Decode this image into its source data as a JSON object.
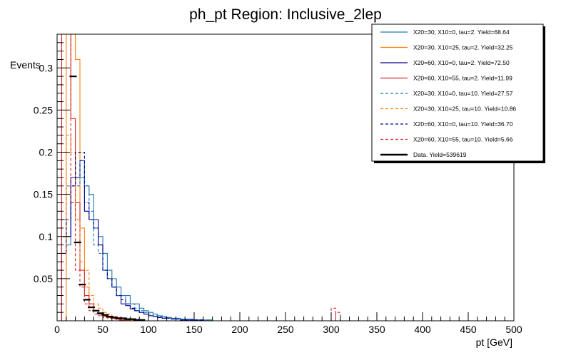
{
  "chart_data": {
    "type": "line",
    "title": "ph_pt Region: Inclusive_2lep",
    "xlabel": "pt [GeV]",
    "ylabel": "Events",
    "xlim": [
      0,
      500
    ],
    "ylim": [
      0,
      0.34
    ],
    "x_ticks": [
      0,
      50,
      100,
      150,
      200,
      250,
      300,
      350,
      400,
      450,
      500
    ],
    "y_ticks": [
      0.05,
      0.1,
      0.15,
      0.2,
      0.25,
      0.3
    ],
    "x_tick_labels": [
      "0",
      "50",
      "100",
      "150",
      "200",
      "250",
      "300",
      "350",
      "400",
      "450",
      "500"
    ],
    "y_tick_labels": [
      "0.05",
      "0.1",
      "0.15",
      "0.2",
      "0.25",
      "0.3"
    ],
    "grid": false,
    "legend_position": "top-right",
    "bin_edges": [
      0,
      5,
      10,
      15,
      20,
      25,
      30,
      35,
      40,
      45,
      50,
      55,
      60,
      65,
      70,
      75,
      80,
      85,
      90,
      95,
      100,
      105,
      110,
      115,
      120,
      125,
      130,
      135,
      140,
      145,
      150,
      155,
      160,
      165,
      170,
      175,
      180,
      185,
      190,
      195,
      200
    ],
    "series": [
      {
        "name": "X20=30, X10=0, tau=2. Yield=68.64",
        "color": "#1f77b4",
        "dashed": false,
        "values": [
          0.0,
          0.12,
          0.09,
          0.17,
          0.17,
          0.17,
          0.16,
          0.15,
          0.11,
          0.1,
          0.08,
          0.06,
          0.05,
          0.04,
          0.03,
          0.03,
          0.02,
          0.02,
          0.015,
          0.012,
          0.01,
          0.008,
          0.006,
          0.005,
          0.004,
          0.003,
          0.003,
          0.002,
          0.002,
          0.002,
          0.001,
          0.001,
          0.001,
          0.001,
          0.0,
          0.0,
          0.0,
          0.0,
          0.0,
          0.0
        ]
      },
      {
        "name": "X20=30, X10=25, tau=2. Yield=32.25",
        "color": "#ff7f0e",
        "dashed": false,
        "values": [
          0.0,
          0.0,
          0.34,
          0.34,
          0.31,
          0.11,
          0.04,
          0.02,
          0.012,
          0.008,
          0.005,
          0.004,
          0.003,
          0.002,
          0.001,
          0.001,
          0.0,
          0.0,
          0.0,
          0.0,
          0.0,
          0.0,
          0.0,
          0.0,
          0.0,
          0.0,
          0.0,
          0.0,
          0.0,
          0.0,
          0.0,
          0.0,
          0.0,
          0.0,
          0.0,
          0.0,
          0.0,
          0.0,
          0.0,
          0.0
        ]
      },
      {
        "name": "X20=60, X10=0, tau=2. Yield=72.50",
        "color": "#00008b",
        "dashed": false,
        "values": [
          0.0,
          0.08,
          0.1,
          0.17,
          0.17,
          0.19,
          0.13,
          0.12,
          0.12,
          0.09,
          0.06,
          0.05,
          0.04,
          0.03,
          0.02,
          0.018,
          0.014,
          0.012,
          0.01,
          0.008,
          0.006,
          0.005,
          0.004,
          0.003,
          0.003,
          0.002,
          0.002,
          0.001,
          0.001,
          0.001,
          0.001,
          0.001,
          0.0,
          0.0,
          0.0,
          0.0,
          0.0,
          0.0,
          0.0,
          0.0
        ]
      },
      {
        "name": "X20=60, X10=55, tau=2. Yield=11.99",
        "color": "#d62728",
        "dashed": false,
        "values": [
          0.0,
          0.34,
          0.34,
          0.24,
          0.14,
          0.06,
          0.03,
          0.02,
          0.012,
          0.008,
          0.006,
          0.004,
          0.003,
          0.002,
          0.001,
          0.001,
          0.0,
          0.0,
          0.0,
          0.0,
          0.0,
          0.0,
          0.0,
          0.0,
          0.0,
          0.0,
          0.0,
          0.0,
          0.0,
          0.0,
          0.0,
          0.0,
          0.0,
          0.0,
          0.0,
          0.0,
          0.0,
          0.0,
          0.0,
          0.0
        ]
      },
      {
        "name": "X20=30, X10=0, tau=10. Yield=27.57",
        "color": "#1f77b4",
        "dashed": true,
        "values": [
          0.0,
          0.12,
          0.16,
          0.16,
          0.16,
          0.19,
          0.16,
          0.13,
          0.09,
          0.08,
          0.06,
          0.05,
          0.04,
          0.03,
          0.03,
          0.02,
          0.02,
          0.015,
          0.012,
          0.01,
          0.008,
          0.006,
          0.005,
          0.004,
          0.003,
          0.003,
          0.002,
          0.002,
          0.002,
          0.001,
          0.001,
          0.001,
          0.001,
          0.001,
          0.0,
          0.0,
          0.0,
          0.0,
          0.0,
          0.0
        ]
      },
      {
        "name": "X20=30, X10=25, tau=10. Yield=10.86",
        "color": "#ff7f0e",
        "dashed": true,
        "values": [
          0.0,
          0.06,
          0.22,
          0.2,
          0.12,
          0.07,
          0.06,
          0.03,
          0.02,
          0.015,
          0.01,
          0.008,
          0.005,
          0.004,
          0.003,
          0.002,
          0.001,
          0.001,
          0.0,
          0.0,
          0.0,
          0.0,
          0.0,
          0.0,
          0.0,
          0.0,
          0.0,
          0.0,
          0.0,
          0.0,
          0.0,
          0.0,
          0.0,
          0.0,
          0.0,
          0.0,
          0.0,
          0.0,
          0.0,
          0.0
        ]
      },
      {
        "name": "X20=60, X10=0, tau=10. Yield=36.70",
        "color": "#00008b",
        "dashed": true,
        "values": [
          0.0,
          0.1,
          0.12,
          0.16,
          0.2,
          0.2,
          0.14,
          0.12,
          0.11,
          0.09,
          0.06,
          0.05,
          0.04,
          0.03,
          0.025,
          0.02,
          0.015,
          0.012,
          0.01,
          0.008,
          0.006,
          0.005,
          0.004,
          0.003,
          0.003,
          0.002,
          0.002,
          0.001,
          0.001,
          0.001,
          0.001,
          0.001,
          0.0,
          0.0,
          0.0,
          0.0,
          0.0,
          0.0,
          0.0,
          0.0
        ]
      },
      {
        "name": "X20=60, X10=55, tau=10. Yield=5.66",
        "color": "#d62728",
        "dashed": true,
        "values": [
          0.0,
          0.34,
          0.34,
          0.14,
          0.06,
          0.04,
          0.02,
          0.012,
          0.008,
          0.006,
          0.004,
          0.003,
          0.002,
          0.001,
          0.001,
          0.0,
          0.0,
          0.0,
          0.0,
          0.0,
          0.0,
          0.0,
          0.0,
          0.0,
          0.0,
          0.0,
          0.0,
          0.0,
          0.0,
          0.0,
          0.0,
          0.0,
          0.0,
          0.0,
          0.0,
          0.0,
          0.0,
          0.0,
          0.0,
          0.0
        ]
      }
    ],
    "extra_bins": [
      {
        "series_index": 7,
        "x0": 300,
        "x1": 305,
        "value": 0.015
      },
      {
        "series_index": 7,
        "x0": 305,
        "x1": 310,
        "value": 0.01
      }
    ],
    "data_series": {
      "name": "Data. Yield=539619",
      "color": "#000000",
      "x": [
        17.5,
        22.5,
        27.5,
        32.5,
        37.5,
        42.5,
        47.5,
        52.5,
        57.5,
        62.5,
        67.5,
        72.5,
        77.5,
        82.5,
        87.5,
        92.5
      ],
      "y": [
        0.29,
        0.093,
        0.043,
        0.025,
        0.016,
        0.012,
        0.009,
        0.007,
        0.005,
        0.004,
        0.003,
        0.003,
        0.002,
        0.002,
        0.001,
        0.001
      ]
    }
  }
}
